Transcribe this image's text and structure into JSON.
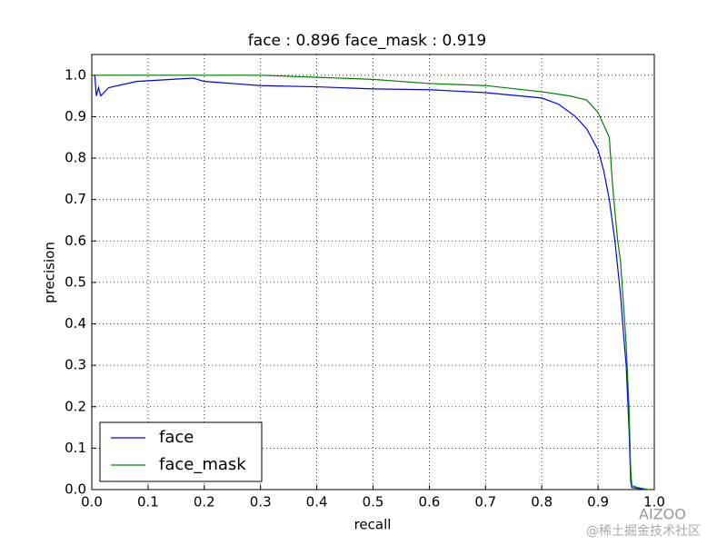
{
  "chart_data": {
    "type": "line",
    "title": "face : 0.896  face_mask : 0.919",
    "x_label": "recall",
    "y_label": "precision",
    "xlim": [
      0,
      1
    ],
    "ylim": [
      0,
      1.05
    ],
    "xticks": [
      {
        "value": 0,
        "label": "0.0"
      },
      {
        "value": 0.1,
        "label": "0.1"
      },
      {
        "value": 0.2,
        "label": "0.2"
      },
      {
        "value": 0.3,
        "label": "0.3"
      },
      {
        "value": 0.4,
        "label": "0.4"
      },
      {
        "value": 0.5,
        "label": "0.5"
      },
      {
        "value": 0.6,
        "label": "0.6"
      },
      {
        "value": 0.7,
        "label": "0.7"
      },
      {
        "value": 0.8,
        "label": "0.8"
      },
      {
        "value": 0.9,
        "label": "0.9"
      },
      {
        "value": 1,
        "label": "1.0"
      }
    ],
    "yticks": [
      {
        "value": 0,
        "label": "0.0"
      },
      {
        "value": 0.1,
        "label": "0.1"
      },
      {
        "value": 0.2,
        "label": "0.2"
      },
      {
        "value": 0.3,
        "label": "0.3"
      },
      {
        "value": 0.4,
        "label": "0.4"
      },
      {
        "value": 0.5,
        "label": "0.5"
      },
      {
        "value": 0.6,
        "label": "0.6"
      },
      {
        "value": 0.7,
        "label": "0.7"
      },
      {
        "value": 0.8,
        "label": "0.8"
      },
      {
        "value": 0.9,
        "label": "0.9"
      },
      {
        "value": 1,
        "label": "1.0"
      }
    ],
    "grid": true,
    "legend": "lower left",
    "series": [
      {
        "name": "face",
        "color": "#0000ff",
        "x": [
          0.005,
          0.006,
          0.008,
          0.012,
          0.016,
          0.03,
          0.08,
          0.18,
          0.2,
          0.25,
          0.3,
          0.4,
          0.5,
          0.6,
          0.7,
          0.8,
          0.83,
          0.86,
          0.88,
          0.9,
          0.91,
          0.92,
          0.93,
          0.94,
          0.945,
          0.95,
          0.955,
          0.958,
          0.96,
          0.97,
          0.985
        ],
        "values": [
          1.0,
          0.99,
          0.95,
          0.97,
          0.95,
          0.97,
          0.985,
          0.993,
          0.985,
          0.98,
          0.975,
          0.972,
          0.967,
          0.965,
          0.958,
          0.945,
          0.93,
          0.9,
          0.87,
          0.82,
          0.77,
          0.7,
          0.6,
          0.47,
          0.38,
          0.3,
          0.15,
          0.02,
          0.005,
          0.003,
          0.0
        ]
      },
      {
        "name": "face_mask",
        "color": "#008000",
        "x": [
          0.0,
          0.3,
          0.4,
          0.5,
          0.6,
          0.7,
          0.8,
          0.85,
          0.88,
          0.9,
          0.91,
          0.92,
          0.925,
          0.93,
          0.935,
          0.94,
          0.945,
          0.95,
          0.955,
          0.958,
          0.96,
          0.97,
          0.99
        ],
        "values": [
          1.0,
          1.0,
          0.995,
          0.99,
          0.98,
          0.975,
          0.96,
          0.95,
          0.94,
          0.91,
          0.88,
          0.85,
          0.75,
          0.67,
          0.6,
          0.55,
          0.45,
          0.35,
          0.2,
          0.05,
          0.01,
          0.005,
          0.0
        ]
      }
    ],
    "watermark": [
      "AIZOO",
      "@稀土掘金技术社区"
    ]
  }
}
